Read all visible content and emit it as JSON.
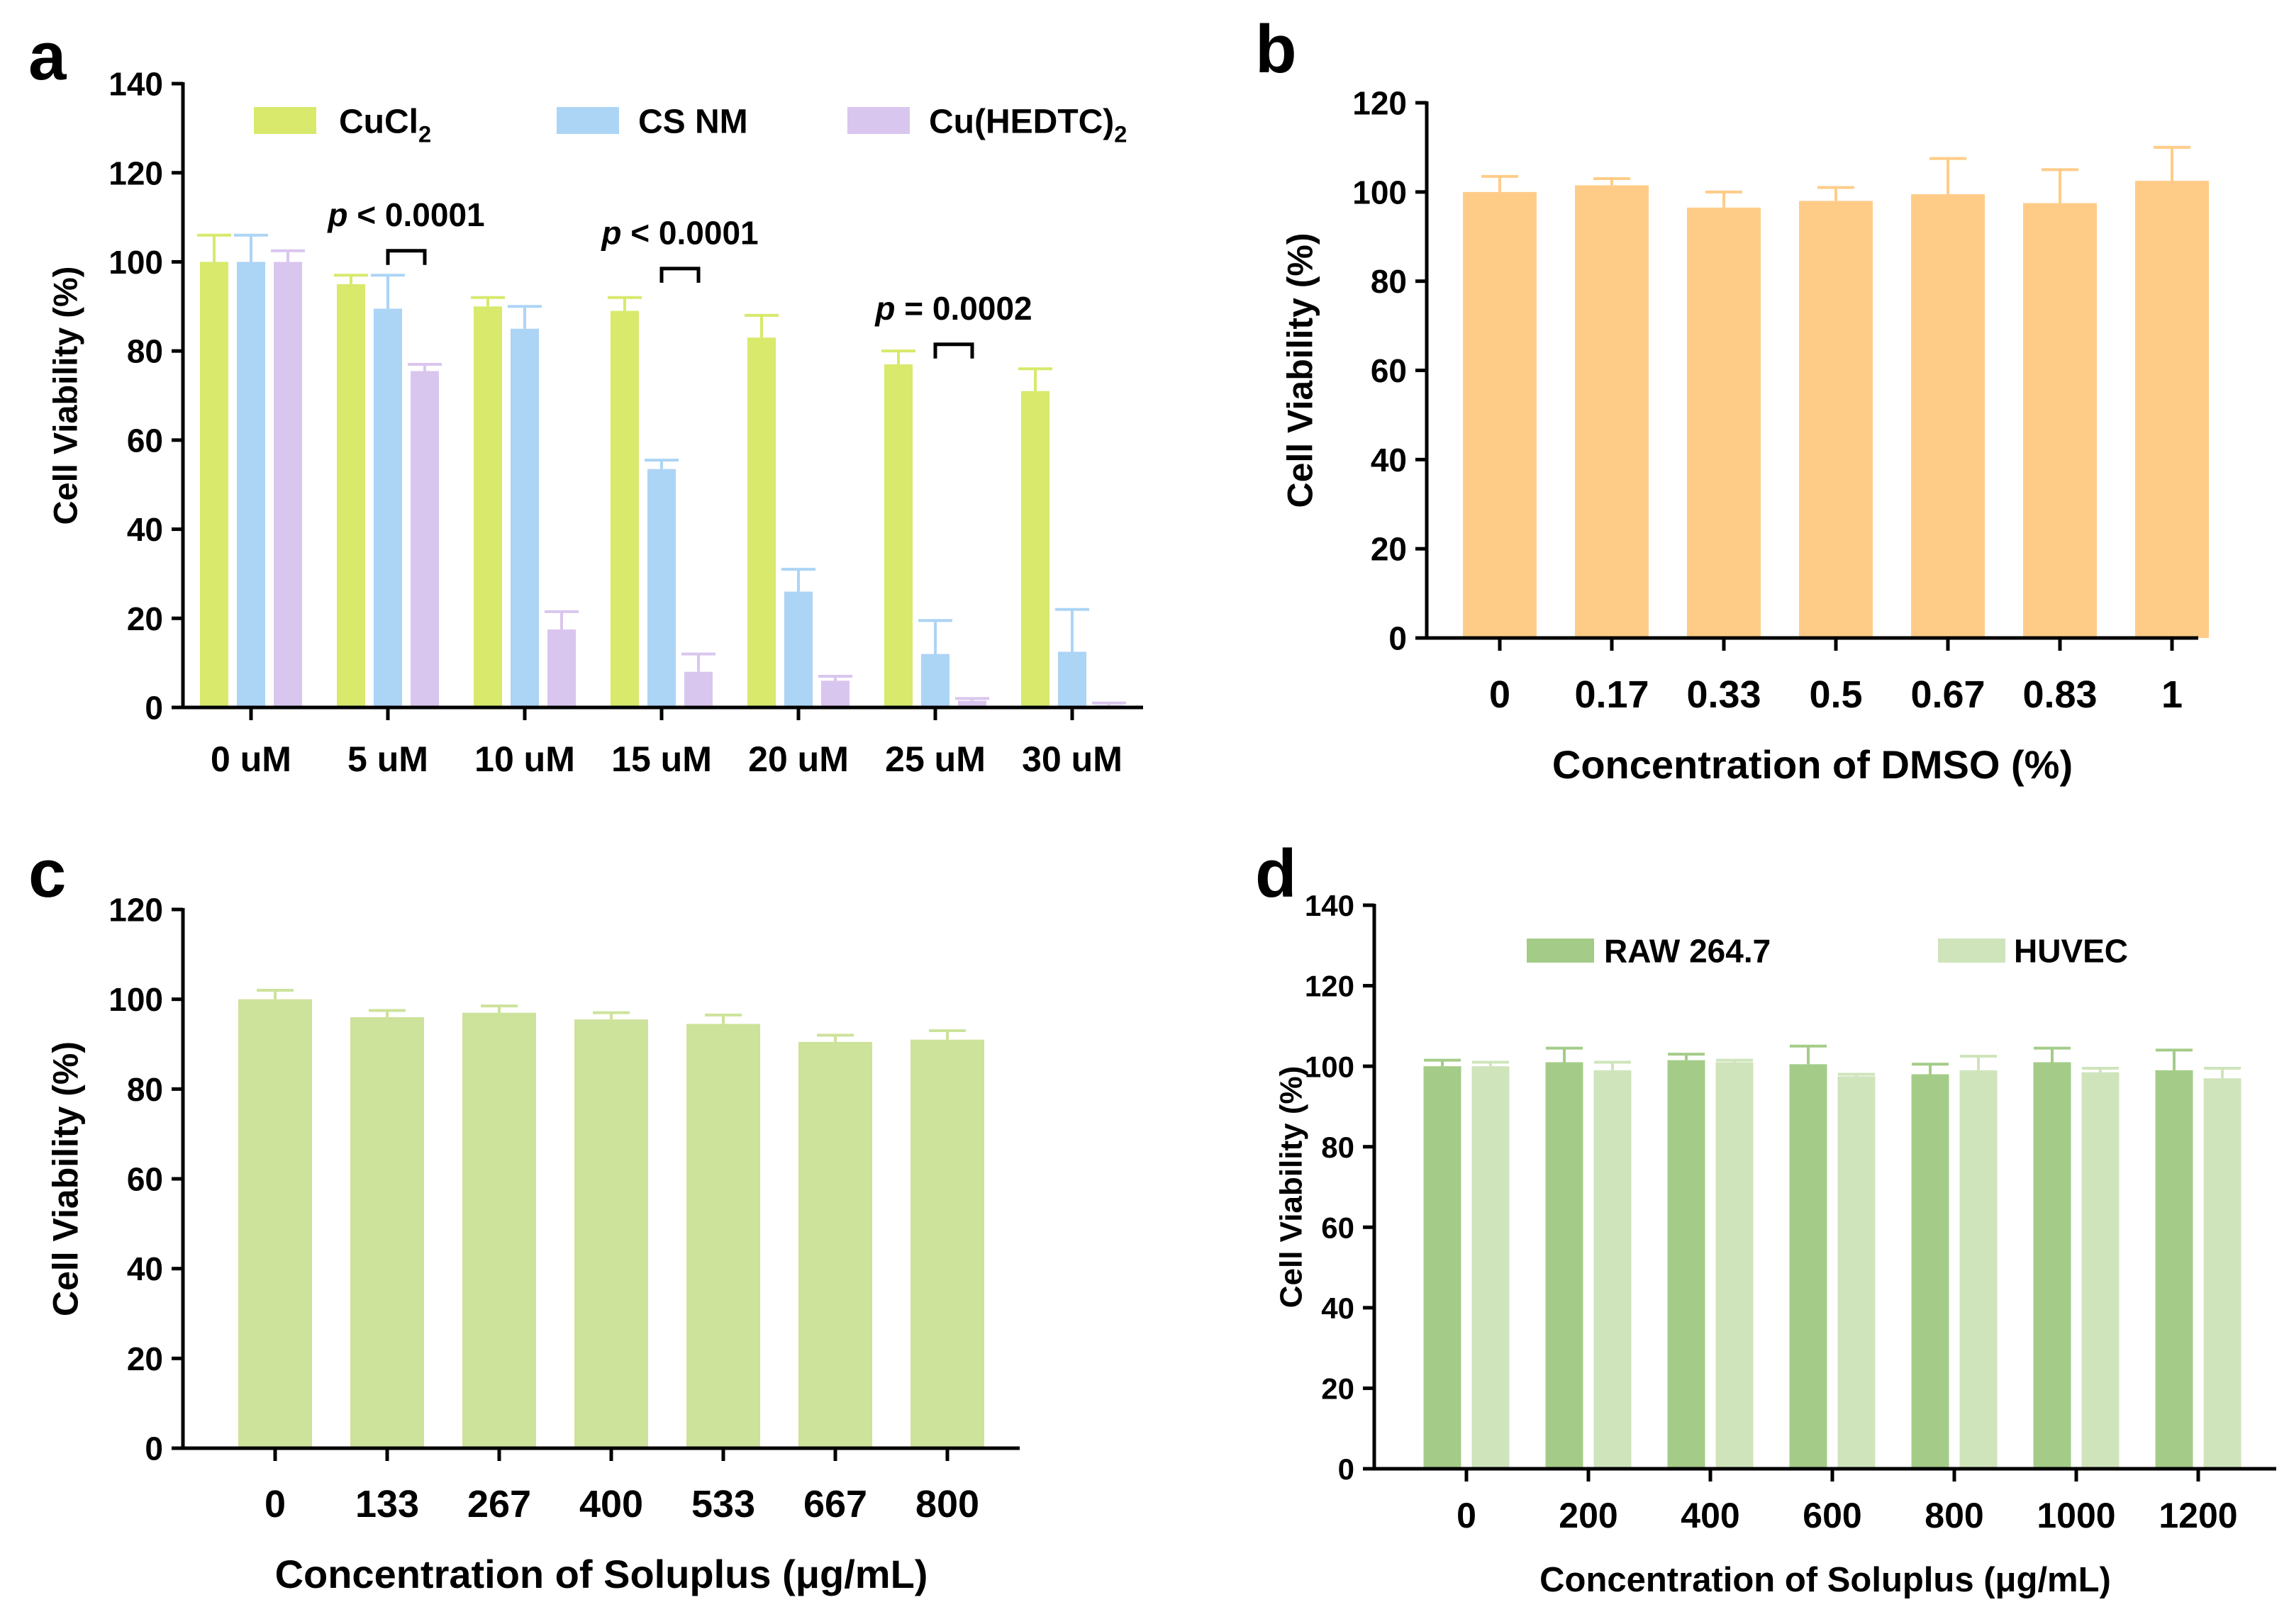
{
  "colors": {
    "cucl2": "#d8e96b",
    "csnm": "#acd4f5",
    "cuhedtc": "#d9c6ee",
    "dmso": "#ffcc88",
    "soluplus": "#cde29a",
    "raw": "#a4cc88",
    "huvec": "#cfe4bb",
    "axis": "#000000"
  },
  "chart_data": [
    {
      "panel": "a",
      "type": "bar",
      "ylabel": "Cell Viability (%)",
      "xlabel": "",
      "ylim": [
        0,
        140
      ],
      "yticks": [
        "0",
        "20",
        "40",
        "60",
        "80",
        "100",
        "120",
        "140"
      ],
      "categories": [
        "0 uM",
        "5 uM",
        "10 uM",
        "15 uM",
        "20 uM",
        "25 uM",
        "30 uM"
      ],
      "legend_position": "top",
      "series": [
        {
          "name": "CuCl",
          "sub": "2",
          "color_key": "cucl2",
          "values": [
            100,
            95,
            90,
            89,
            83,
            77,
            71
          ],
          "errors": [
            6,
            2,
            2,
            3,
            5,
            3,
            5
          ]
        },
        {
          "name": "CS NM",
          "sub": "",
          "color_key": "csnm",
          "values": [
            100,
            89.5,
            85,
            53.5,
            26,
            12,
            12.5
          ],
          "errors": [
            6,
            7.5,
            5,
            2,
            5,
            7.5,
            9.5
          ]
        },
        {
          "name": "Cu(HEDTC)",
          "sub": "2",
          "color_key": "cuhedtc",
          "values": [
            100,
            75.5,
            17.5,
            8,
            6,
            1.5,
            0.5
          ],
          "errors": [
            2.5,
            1.5,
            4,
            4,
            1,
            0.5,
            0.5
          ]
        }
      ],
      "annotations": [
        {
          "p": "p",
          "text": "< 0.0001",
          "group": 1,
          "bracket_y": 102.5,
          "label_y": 108
        },
        {
          "p": "p",
          "text": "< 0.0001",
          "group": 3,
          "bracket_y": 98.5,
          "label_y": 104
        },
        {
          "p": "p",
          "text": "= 0.0002",
          "group": 5,
          "bracket_y": 81.5,
          "label_y": 87
        }
      ]
    },
    {
      "panel": "b",
      "type": "bar",
      "ylabel": "Cell Viability (%)",
      "xlabel": "Concentration of DMSO (%)",
      "ylim": [
        0,
        120
      ],
      "yticks": [
        "0",
        "20",
        "40",
        "60",
        "80",
        "100",
        "120"
      ],
      "categories": [
        "0",
        "0.17",
        "0.33",
        "0.5",
        "0.67",
        "0.83",
        "1"
      ],
      "series": [
        {
          "name": "DMSO",
          "color_key": "dmso",
          "values": [
            100,
            101.5,
            96.5,
            98,
            99.5,
            97.5,
            102.5
          ],
          "errors": [
            3.5,
            1.5,
            3.5,
            3,
            8,
            7.5,
            7.5
          ]
        }
      ]
    },
    {
      "panel": "c",
      "type": "bar",
      "ylabel": "Cell Viability (%)",
      "xlabel": "Concentration of Soluplus (μg/mL)",
      "ylim": [
        0,
        120
      ],
      "yticks": [
        "0",
        "20",
        "40",
        "60",
        "80",
        "100",
        "120"
      ],
      "categories": [
        "0",
        "133",
        "267",
        "400",
        "533",
        "667",
        "800"
      ],
      "series": [
        {
          "name": "Soluplus",
          "color_key": "soluplus",
          "values": [
            100,
            96,
            97,
            95.5,
            94.5,
            90.5,
            91
          ],
          "errors": [
            2,
            1.5,
            1.5,
            1.5,
            2,
            1.5,
            2
          ]
        }
      ]
    },
    {
      "panel": "d",
      "type": "bar",
      "ylabel": "Cell Viability (%)",
      "xlabel": "Concentration of Soluplus (μg/mL)",
      "ylim": [
        0,
        140
      ],
      "yticks": [
        "0",
        "20",
        "40",
        "60",
        "80",
        "100",
        "120",
        "140"
      ],
      "categories": [
        "0",
        "200",
        "400",
        "600",
        "800",
        "1000",
        "1200"
      ],
      "legend_position": "top",
      "series": [
        {
          "name": "RAW 264.7",
          "color_key": "raw",
          "values": [
            100,
            101,
            101.5,
            100.5,
            98,
            101,
            99
          ],
          "errors": [
            1.5,
            3.5,
            1.5,
            4.5,
            2.5,
            3.5,
            5
          ]
        },
        {
          "name": "HUVEC",
          "color_key": "huvec",
          "values": [
            100,
            99,
            101,
            97.5,
            99,
            98.5,
            97
          ],
          "errors": [
            1,
            2,
            0.5,
            0.5,
            3.5,
            1,
            2.5
          ]
        }
      ]
    }
  ]
}
